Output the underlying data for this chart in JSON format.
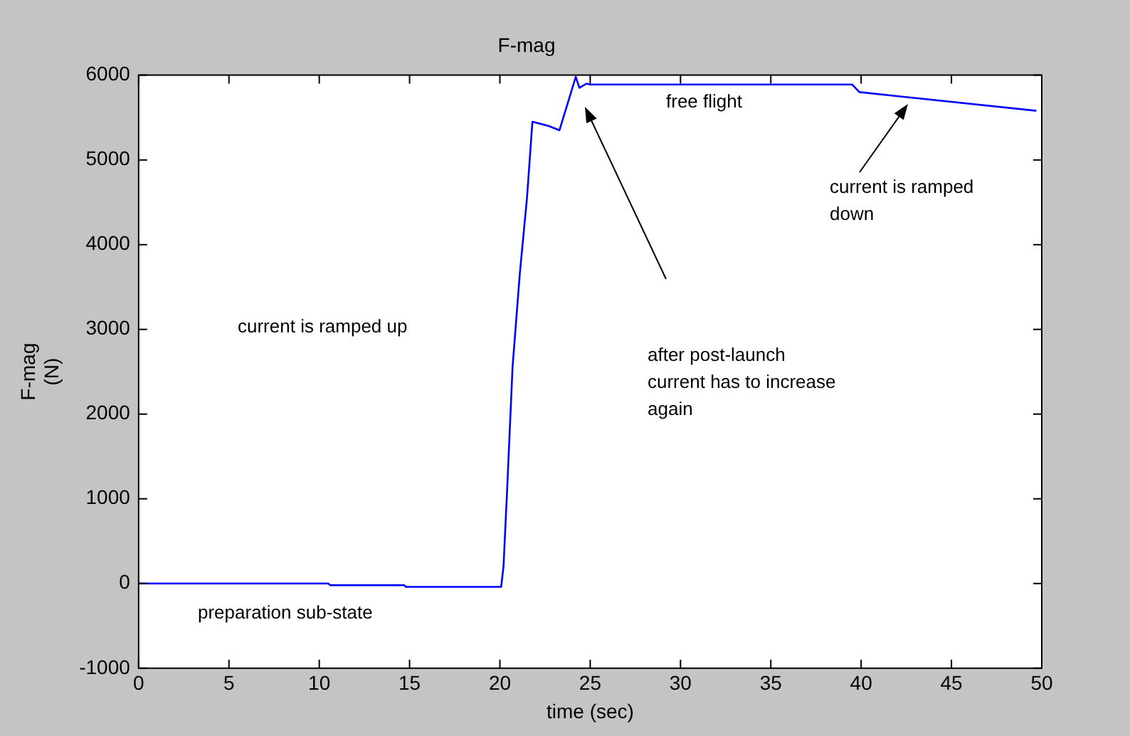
{
  "chart_data": {
    "type": "line",
    "title": "F-mag",
    "xlabel": "time (sec)",
    "ylabel": "F-mag\n(N)",
    "x": [
      0,
      10.5,
      10.6,
      14.7,
      14.8,
      20.07,
      20.2,
      20.4,
      20.7,
      21.1,
      21.5,
      21.8,
      22.7,
      23.3,
      23.8,
      24.2,
      24.4,
      24.8,
      25.0,
      39.5,
      39.9,
      49.7
    ],
    "series": [
      {
        "color": "#0000ff",
        "values": [
          0,
          0,
          -20,
          -20,
          -40,
          -40,
          200,
          1100,
          2550,
          3650,
          4550,
          5450,
          5400,
          5350,
          5700,
          5980,
          5850,
          5900,
          5890,
          5890,
          5800,
          5580
        ]
      }
    ],
    "xlim": [
      0,
      50
    ],
    "xticks": [
      0,
      5,
      10,
      15,
      20,
      25,
      30,
      35,
      40,
      45,
      50
    ],
    "ylim": [
      -1000,
      6000
    ],
    "yticks": [
      -1000,
      0,
      1000,
      2000,
      3000,
      4000,
      5000,
      6000
    ],
    "grid": false,
    "legend": false,
    "marker": "none",
    "line_style": "solid",
    "annotations": [
      "current is ramped up",
      "preparation sub-state",
      "free flight",
      "after post-launch\ncurrent has to increase\nagain",
      "current is ramped\ndown"
    ]
  }
}
